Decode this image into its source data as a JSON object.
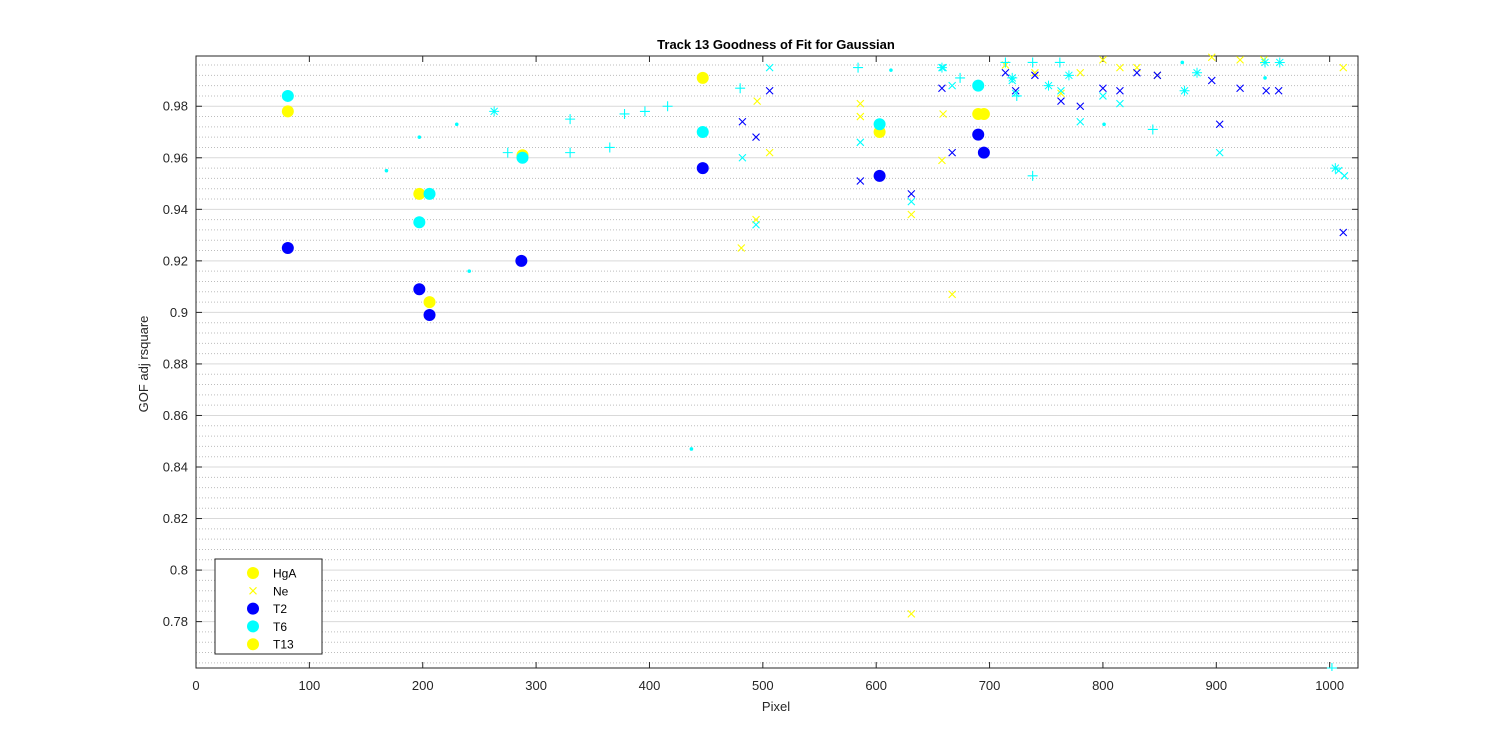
{
  "chart_data": {
    "type": "scatter",
    "title": "Track 13  Goodness of Fit for Gaussian",
    "xlabel": "Pixel",
    "ylabel": "GOF adj rsquare",
    "xlim": [
      0,
      1025
    ],
    "ylim": [
      0.762,
      0.9995
    ],
    "xticks": [
      0,
      100,
      200,
      300,
      400,
      500,
      600,
      700,
      800,
      900,
      1000
    ],
    "xtick_labels": [
      "0",
      "100",
      "200",
      "300",
      "400",
      "500",
      "600",
      "700",
      "800",
      "900",
      "1000"
    ],
    "yticks": [
      0.78,
      0.8,
      0.82,
      0.84,
      0.86,
      0.88,
      0.9,
      0.92,
      0.94,
      0.96,
      0.98
    ],
    "ytick_labels": [
      "0.78",
      "0.8",
      "0.82",
      "0.84",
      "0.86",
      "0.88",
      "0.9",
      "0.92",
      "0.94",
      "0.96",
      "0.98"
    ],
    "grid": "major and minor",
    "legend_position": "bottom-left",
    "legend": [
      {
        "label": "HgA",
        "marker": "dot",
        "color": "#FFFF00"
      },
      {
        "label": "Ne",
        "marker": "x",
        "color": "#FFFF00"
      },
      {
        "label": "T2",
        "marker": "dot",
        "color": "#0000FF"
      },
      {
        "label": "T6",
        "marker": "dot",
        "color": "#00FFFF"
      },
      {
        "label": "T13",
        "marker": "dot",
        "color": "#FFFF00"
      }
    ],
    "series": [
      {
        "name": "HgA",
        "marker": "dot",
        "color": "#FFFF00",
        "points": [
          [
            81,
            0.978
          ],
          [
            197,
            0.946
          ],
          [
            206,
            0.904
          ],
          [
            288,
            0.961
          ],
          [
            447,
            0.991
          ],
          [
            603,
            0.97
          ],
          [
            690,
            0.977
          ],
          [
            695,
            0.977
          ]
        ]
      },
      {
        "name": "Ne",
        "marker": "x",
        "color": "#FFFF00",
        "points": [
          [
            481,
            0.925
          ],
          [
            494,
            0.936
          ],
          [
            495,
            0.982
          ],
          [
            506,
            0.962
          ],
          [
            586,
            0.976
          ],
          [
            586,
            0.981
          ],
          [
            631,
            0.783
          ],
          [
            631,
            0.938
          ],
          [
            658,
            0.959
          ],
          [
            659,
            0.977
          ],
          [
            667,
            0.907
          ],
          [
            714,
            0.996
          ],
          [
            740,
            0.993
          ],
          [
            763,
            0.985
          ],
          [
            780,
            0.993
          ],
          [
            800,
            0.998
          ],
          [
            815,
            0.995
          ],
          [
            830,
            0.995
          ],
          [
            848,
            0.992
          ],
          [
            896,
            0.999
          ],
          [
            921,
            0.998
          ],
          [
            942,
            0.998
          ],
          [
            1012,
            0.995
          ]
        ]
      },
      {
        "name": "T2",
        "marker": "dot",
        "color": "#0000FF",
        "points": [
          [
            81,
            0.925
          ],
          [
            197,
            0.909
          ],
          [
            206,
            0.899
          ],
          [
            287,
            0.92
          ],
          [
            447,
            0.956
          ],
          [
            603,
            0.953
          ],
          [
            690,
            0.969
          ],
          [
            695,
            0.962
          ]
        ]
      },
      {
        "name": "T2",
        "marker": "x",
        "color": "#0000FF",
        "points": [
          [
            482,
            0.974
          ],
          [
            494,
            0.968
          ],
          [
            506,
            0.986
          ],
          [
            586,
            0.951
          ],
          [
            631,
            0.946
          ],
          [
            658,
            0.987
          ],
          [
            667,
            0.962
          ],
          [
            714,
            0.993
          ],
          [
            723,
            0.986
          ],
          [
            740,
            0.992
          ],
          [
            763,
            0.982
          ],
          [
            780,
            0.98
          ],
          [
            800,
            0.987
          ],
          [
            815,
            0.986
          ],
          [
            830,
            0.993
          ],
          [
            848,
            0.992
          ],
          [
            896,
            0.99
          ],
          [
            903,
            0.973
          ],
          [
            921,
            0.987
          ],
          [
            944,
            0.986
          ],
          [
            955,
            0.986
          ],
          [
            1012,
            0.931
          ]
        ]
      },
      {
        "name": "T6",
        "marker": "dot",
        "color": "#00FFFF",
        "points": [
          [
            81,
            0.984
          ],
          [
            197,
            0.935
          ],
          [
            206,
            0.946
          ],
          [
            288,
            0.96
          ],
          [
            447,
            0.97
          ],
          [
            603,
            0.973
          ],
          [
            690,
            0.988
          ]
        ]
      },
      {
        "name": "T6",
        "marker": "x",
        "color": "#00FFFF",
        "points": [
          [
            482,
            0.96
          ],
          [
            494,
            0.934
          ],
          [
            506,
            0.995
          ],
          [
            586,
            0.966
          ],
          [
            631,
            0.943
          ],
          [
            659,
            0.995
          ],
          [
            667,
            0.988
          ],
          [
            720,
            0.99
          ],
          [
            723,
            0.985
          ],
          [
            763,
            0.986
          ],
          [
            780,
            0.974
          ],
          [
            800,
            0.984
          ],
          [
            815,
            0.981
          ],
          [
            903,
            0.962
          ],
          [
            1008,
            0.955
          ],
          [
            1013,
            0.953
          ]
        ]
      },
      {
        "name": "T6",
        "marker": "plus",
        "color": "#00FFFF",
        "points": [
          [
            275,
            0.962
          ],
          [
            330,
            0.975
          ],
          [
            330,
            0.962
          ],
          [
            365,
            0.964
          ],
          [
            378,
            0.977
          ],
          [
            396,
            0.978
          ],
          [
            416,
            0.98
          ],
          [
            480,
            0.987
          ],
          [
            584,
            0.995
          ],
          [
            674,
            0.991
          ],
          [
            714,
            0.997
          ],
          [
            724,
            0.984
          ],
          [
            738,
            0.997
          ],
          [
            738,
            0.953
          ],
          [
            762,
            0.997
          ],
          [
            844,
            0.971
          ],
          [
            1002,
            0.762
          ]
        ]
      },
      {
        "name": "T6",
        "marker": "star",
        "color": "#00FFFF",
        "points": [
          [
            263,
            0.978
          ],
          [
            658,
            0.995
          ],
          [
            720,
            0.991
          ],
          [
            752,
            0.988
          ],
          [
            770,
            0.992
          ],
          [
            872,
            0.986
          ],
          [
            883,
            0.993
          ],
          [
            943,
            0.997
          ],
          [
            956,
            0.997
          ],
          [
            1005,
            0.956
          ]
        ]
      },
      {
        "name": "T6",
        "marker": "point",
        "color": "#00FFFF",
        "points": [
          [
            168,
            0.955
          ],
          [
            197,
            0.968
          ],
          [
            230,
            0.973
          ],
          [
            241,
            0.916
          ],
          [
            437,
            0.847
          ],
          [
            613,
            0.994
          ],
          [
            801,
            0.973
          ],
          [
            870,
            0.997
          ],
          [
            943,
            0.991
          ]
        ]
      }
    ]
  }
}
